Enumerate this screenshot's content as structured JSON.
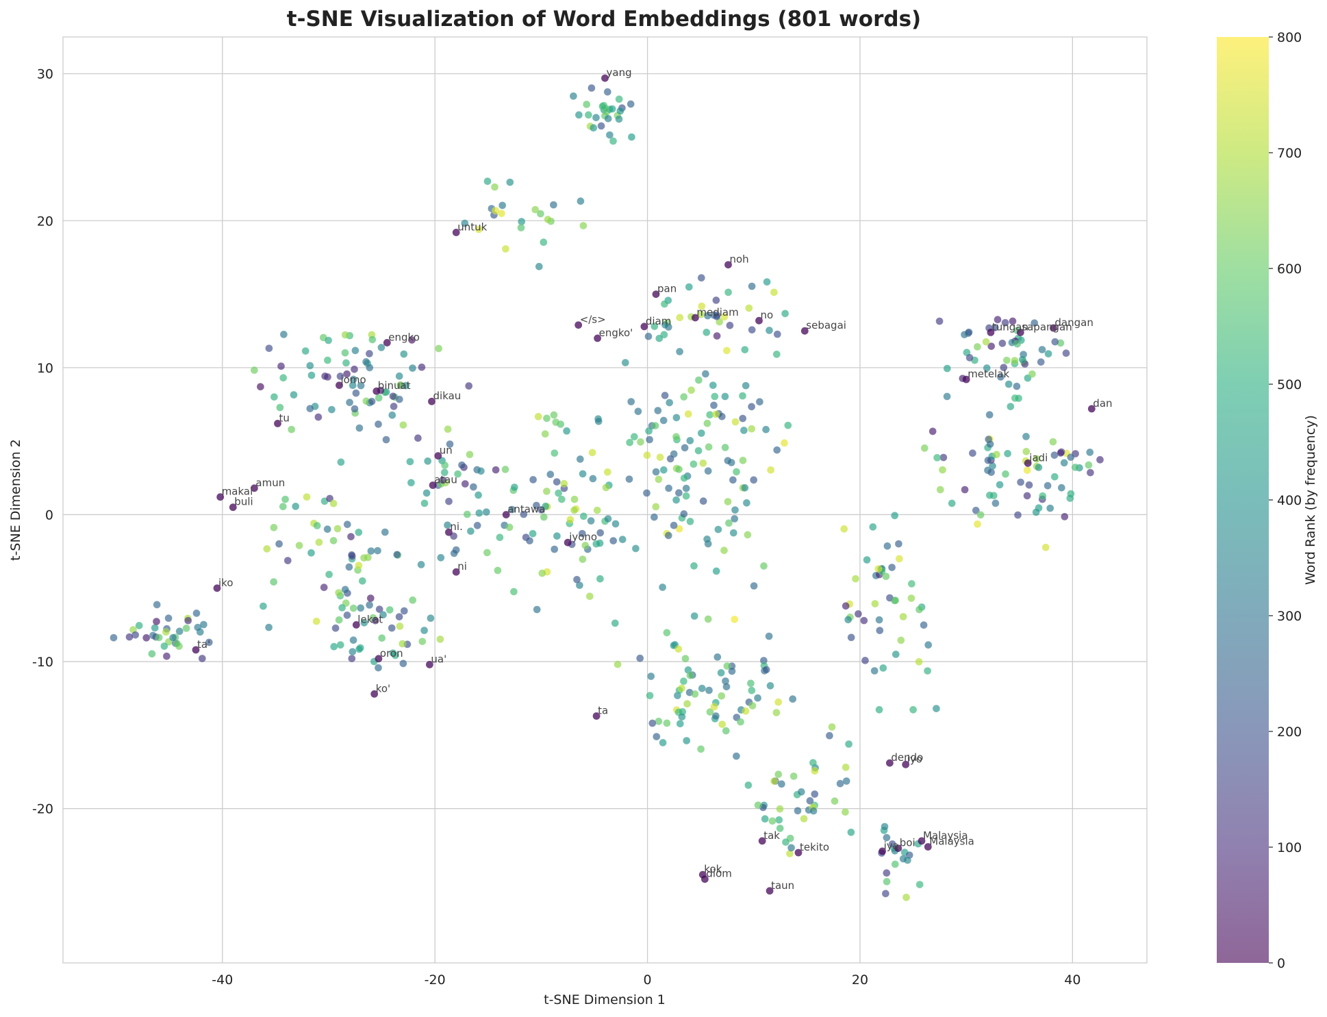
{
  "chart_data": {
    "type": "scatter",
    "title": "t-SNE Visualization of Word Embeddings (801 words)",
    "xlabel": "t-SNE Dimension 1",
    "ylabel": "t-SNE Dimension 2",
    "xlim": [
      -55,
      47
    ],
    "ylim": [
      -30.5,
      32.5
    ],
    "xticks": [
      -40,
      -20,
      0,
      20,
      40
    ],
    "yticks": [
      -20,
      -10,
      0,
      10,
      20,
      30
    ],
    "xtick_labels": [
      "-40",
      "-20",
      "0",
      "20",
      "40"
    ],
    "ytick_labels": [
      "-20",
      "-10",
      "0",
      "10",
      "20",
      "30"
    ],
    "grid": true,
    "colormap": "viridis",
    "colorbar": {
      "label": "Word Rank (by frequency)",
      "range": [
        0,
        800
      ],
      "ticks": [
        0,
        100,
        200,
        300,
        400,
        500,
        600,
        700,
        800
      ],
      "tick_labels": [
        "0",
        "100",
        "200",
        "300",
        "400",
        "500",
        "600",
        "700",
        "800"
      ]
    },
    "labeled_points": [
      {
        "word": "yang",
        "x": -4,
        "y": 29.7
      },
      {
        "word": "untuk",
        "x": -18,
        "y": 19.2
      },
      {
        "word": "noh",
        "x": 7.6,
        "y": 17
      },
      {
        "word": "pan",
        "x": 0.8,
        "y": 15
      },
      {
        "word": "mediam",
        "x": 4.5,
        "y": 13.4
      },
      {
        "word": "no",
        "x": 10.5,
        "y": 13.2
      },
      {
        "word": "diam",
        "x": -0.3,
        "y": 12.8
      },
      {
        "word": "</s>",
        "x": -6.5,
        "y": 12.9
      },
      {
        "word": "engko'",
        "x": -4.7,
        "y": 12
      },
      {
        "word": "sebagai",
        "x": 14.8,
        "y": 12.5
      },
      {
        "word": "engko",
        "x": -24.5,
        "y": 11.7
      },
      {
        "word": "tungan",
        "x": 32.3,
        "y": 12.4
      },
      {
        "word": "sapangan",
        "x": 35.1,
        "y": 12.4
      },
      {
        "word": "dangan",
        "x": 38.2,
        "y": 12.7
      },
      {
        "word": "metelak",
        "x": 30,
        "y": 9.2
      },
      {
        "word": "jomo",
        "x": -29,
        "y": 8.8
      },
      {
        "word": "binuat",
        "x": -25.5,
        "y": 8.4
      },
      {
        "word": "dikau",
        "x": -20.3,
        "y": 7.7
      },
      {
        "word": "dan",
        "x": 41.8,
        "y": 7.2
      },
      {
        "word": "tu",
        "x": -34.8,
        "y": 6.2
      },
      {
        "word": "un",
        "x": -19.7,
        "y": 4
      },
      {
        "word": "jadi",
        "x": 35.8,
        "y": 3.5
      },
      {
        "word": "atau",
        "x": -20.2,
        "y": 2
      },
      {
        "word": "amun",
        "x": -37,
        "y": 1.8
      },
      {
        "word": "makai",
        "x": -40.2,
        "y": 1.2
      },
      {
        "word": "buli",
        "x": -39,
        "y": 0.5
      },
      {
        "word": "antawa",
        "x": -13.3,
        "y": 0
      },
      {
        "word": "ni.",
        "x": -18.7,
        "y": -1.2
      },
      {
        "word": "iyono",
        "x": -7.5,
        "y": -1.9
      },
      {
        "word": "ni",
        "x": -18,
        "y": -3.9
      },
      {
        "word": "iko",
        "x": -40.5,
        "y": -5
      },
      {
        "word": "lekat",
        "x": -27.4,
        "y": -7.5
      },
      {
        "word": "ta'",
        "x": -42.5,
        "y": -9.2
      },
      {
        "word": "oron",
        "x": -25.3,
        "y": -9.8
      },
      {
        "word": "ua'",
        "x": -20.5,
        "y": -10.2
      },
      {
        "word": "ko'",
        "x": -25.7,
        "y": -12.2
      },
      {
        "word": "ta",
        "x": -4.8,
        "y": -13.7
      },
      {
        "word": "dendo",
        "x": 22.8,
        "y": -16.9
      },
      {
        "word": "iyo",
        "x": 24.3,
        "y": -17
      },
      {
        "word": "Malaysia",
        "x": 25.8,
        "y": -22.2
      },
      {
        "word": "Malaysia",
        "x": 26.4,
        "y": -22.6
      },
      {
        "word": "tak",
        "x": 10.8,
        "y": -22.2
      },
      {
        "word": "boi",
        "x": 23.6,
        "y": -22.7
      },
      {
        "word": "iya",
        "x": 22.1,
        "y": -22.9
      },
      {
        "word": "tekito",
        "x": 14.2,
        "y": -23
      },
      {
        "word": "kok",
        "x": 5.2,
        "y": -24.5
      },
      {
        "word": "diom",
        "x": 5.4,
        "y": -24.8
      },
      {
        "word": "taun",
        "x": 11.5,
        "y": -25.6
      }
    ],
    "point_clusters": [
      {
        "cx": -4,
        "cy": 27.3,
        "sx": 2.3,
        "sy": 1.5,
        "n": 28,
        "rank": [
          150,
          700
        ]
      },
      {
        "cx": -12,
        "cy": 19.8,
        "sx": 5,
        "sy": 2.5,
        "n": 22,
        "rank": [
          150,
          780
        ]
      },
      {
        "cx": -27,
        "cy": 9,
        "sx": 6.5,
        "sy": 3,
        "n": 70,
        "rank": [
          30,
          720
        ]
      },
      {
        "cx": -30,
        "cy": -2,
        "sx": 6,
        "sy": 4,
        "n": 50,
        "rank": [
          30,
          760
        ]
      },
      {
        "cx": -25,
        "cy": -8,
        "sx": 5,
        "sy": 2.5,
        "n": 36,
        "rank": [
          30,
          720
        ]
      },
      {
        "cx": -45,
        "cy": -8,
        "sx": 3.5,
        "sy": 1.4,
        "n": 34,
        "rank": [
          40,
          700
        ]
      },
      {
        "cx": -18,
        "cy": 1.5,
        "sx": 4,
        "sy": 5,
        "n": 40,
        "rank": [
          60,
          680
        ]
      },
      {
        "cx": -9,
        "cy": 1,
        "sx": 5,
        "sy": 6,
        "n": 70,
        "rank": [
          150,
          760
        ]
      },
      {
        "cx": 4,
        "cy": 3,
        "sx": 7,
        "sy": 7,
        "n": 110,
        "rank": [
          200,
          790
        ]
      },
      {
        "cx": 6,
        "cy": 13.5,
        "sx": 6,
        "sy": 2.2,
        "n": 36,
        "rank": [
          60,
          760
        ]
      },
      {
        "cx": 6,
        "cy": -12,
        "sx": 6,
        "sy": 3.5,
        "n": 70,
        "rank": [
          200,
          790
        ]
      },
      {
        "cx": 14,
        "cy": -19,
        "sx": 4.5,
        "sy": 3,
        "n": 40,
        "rank": [
          200,
          780
        ]
      },
      {
        "cx": 23,
        "cy": -6,
        "sx": 4,
        "sy": 5,
        "n": 46,
        "rank": [
          60,
          780
        ]
      },
      {
        "cx": 23.5,
        "cy": -23.5,
        "sx": 2.2,
        "sy": 2.2,
        "n": 18,
        "rank": [
          80,
          720
        ]
      },
      {
        "cx": 33,
        "cy": 3,
        "sx": 6,
        "sy": 4,
        "n": 55,
        "rank": [
          50,
          790
        ]
      },
      {
        "cx": 34,
        "cy": 11,
        "sx": 4.5,
        "sy": 2,
        "n": 45,
        "rank": [
          40,
          700
        ]
      },
      {
        "cx": 40,
        "cy": 3.5,
        "sx": 2.5,
        "sy": 2,
        "n": 16,
        "rank": [
          60,
          780
        ]
      }
    ]
  }
}
